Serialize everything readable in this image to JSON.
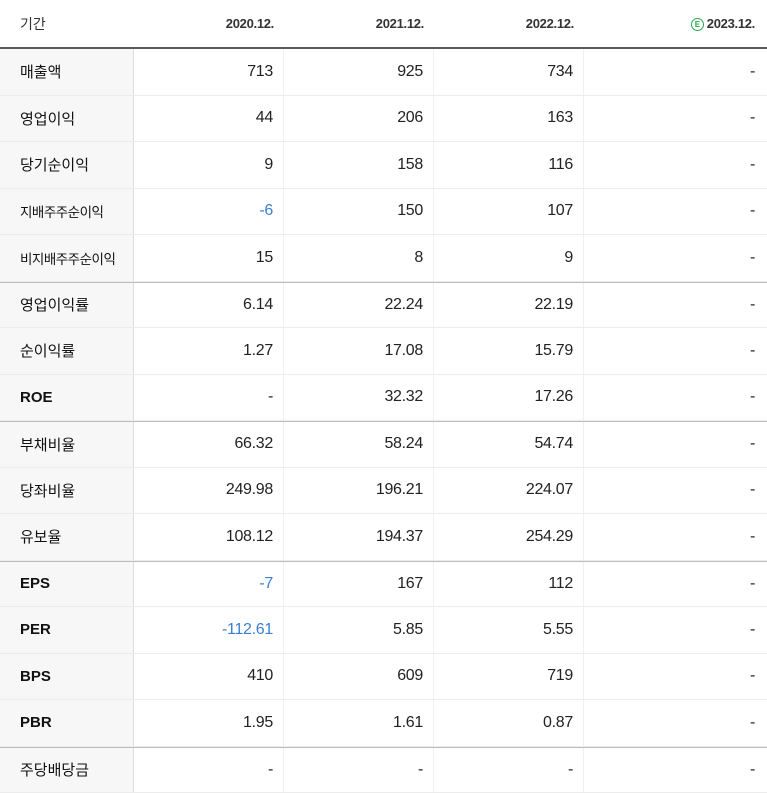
{
  "header": {
    "label": "기간",
    "columns": [
      "2020.12.",
      "2021.12.",
      "2022.12.",
      "2023.12."
    ],
    "estimate_marker": "E"
  },
  "rows": [
    {
      "label": "매출액",
      "values": [
        "713",
        "925",
        "734",
        "-"
      ]
    },
    {
      "label": "영업이익",
      "values": [
        "44",
        "206",
        "163",
        "-"
      ]
    },
    {
      "label": "당기순이익",
      "values": [
        "9",
        "158",
        "116",
        "-"
      ]
    },
    {
      "label": "지배주주순이익",
      "values": [
        "-6",
        "150",
        "107",
        "-"
      ]
    },
    {
      "label": "비지배주주순이익",
      "values": [
        "15",
        "8",
        "9",
        "-"
      ]
    },
    {
      "label": "영업이익률",
      "values": [
        "6.14",
        "22.24",
        "22.19",
        "-"
      ]
    },
    {
      "label": "순이익률",
      "values": [
        "1.27",
        "17.08",
        "15.79",
        "-"
      ]
    },
    {
      "label": "ROE",
      "values": [
        "-",
        "32.32",
        "17.26",
        "-"
      ]
    },
    {
      "label": "부채비율",
      "values": [
        "66.32",
        "58.24",
        "54.74",
        "-"
      ]
    },
    {
      "label": "당좌비율",
      "values": [
        "249.98",
        "196.21",
        "224.07",
        "-"
      ]
    },
    {
      "label": "유보율",
      "values": [
        "108.12",
        "194.37",
        "254.29",
        "-"
      ]
    },
    {
      "label": "EPS",
      "values": [
        "-7",
        "167",
        "112",
        "-"
      ]
    },
    {
      "label": "PER",
      "values": [
        "-112.61",
        "5.85",
        "5.55",
        "-"
      ]
    },
    {
      "label": "BPS",
      "values": [
        "410",
        "609",
        "719",
        "-"
      ]
    },
    {
      "label": "PBR",
      "values": [
        "1.95",
        "1.61",
        "0.87",
        "-"
      ]
    },
    {
      "label": "주당배당금",
      "values": [
        "-",
        "-",
        "-",
        "-"
      ]
    }
  ],
  "colors": {
    "negative": "#3a7fd6",
    "estimate": "#2aa84a",
    "label_bg": "#f7f7f7"
  }
}
